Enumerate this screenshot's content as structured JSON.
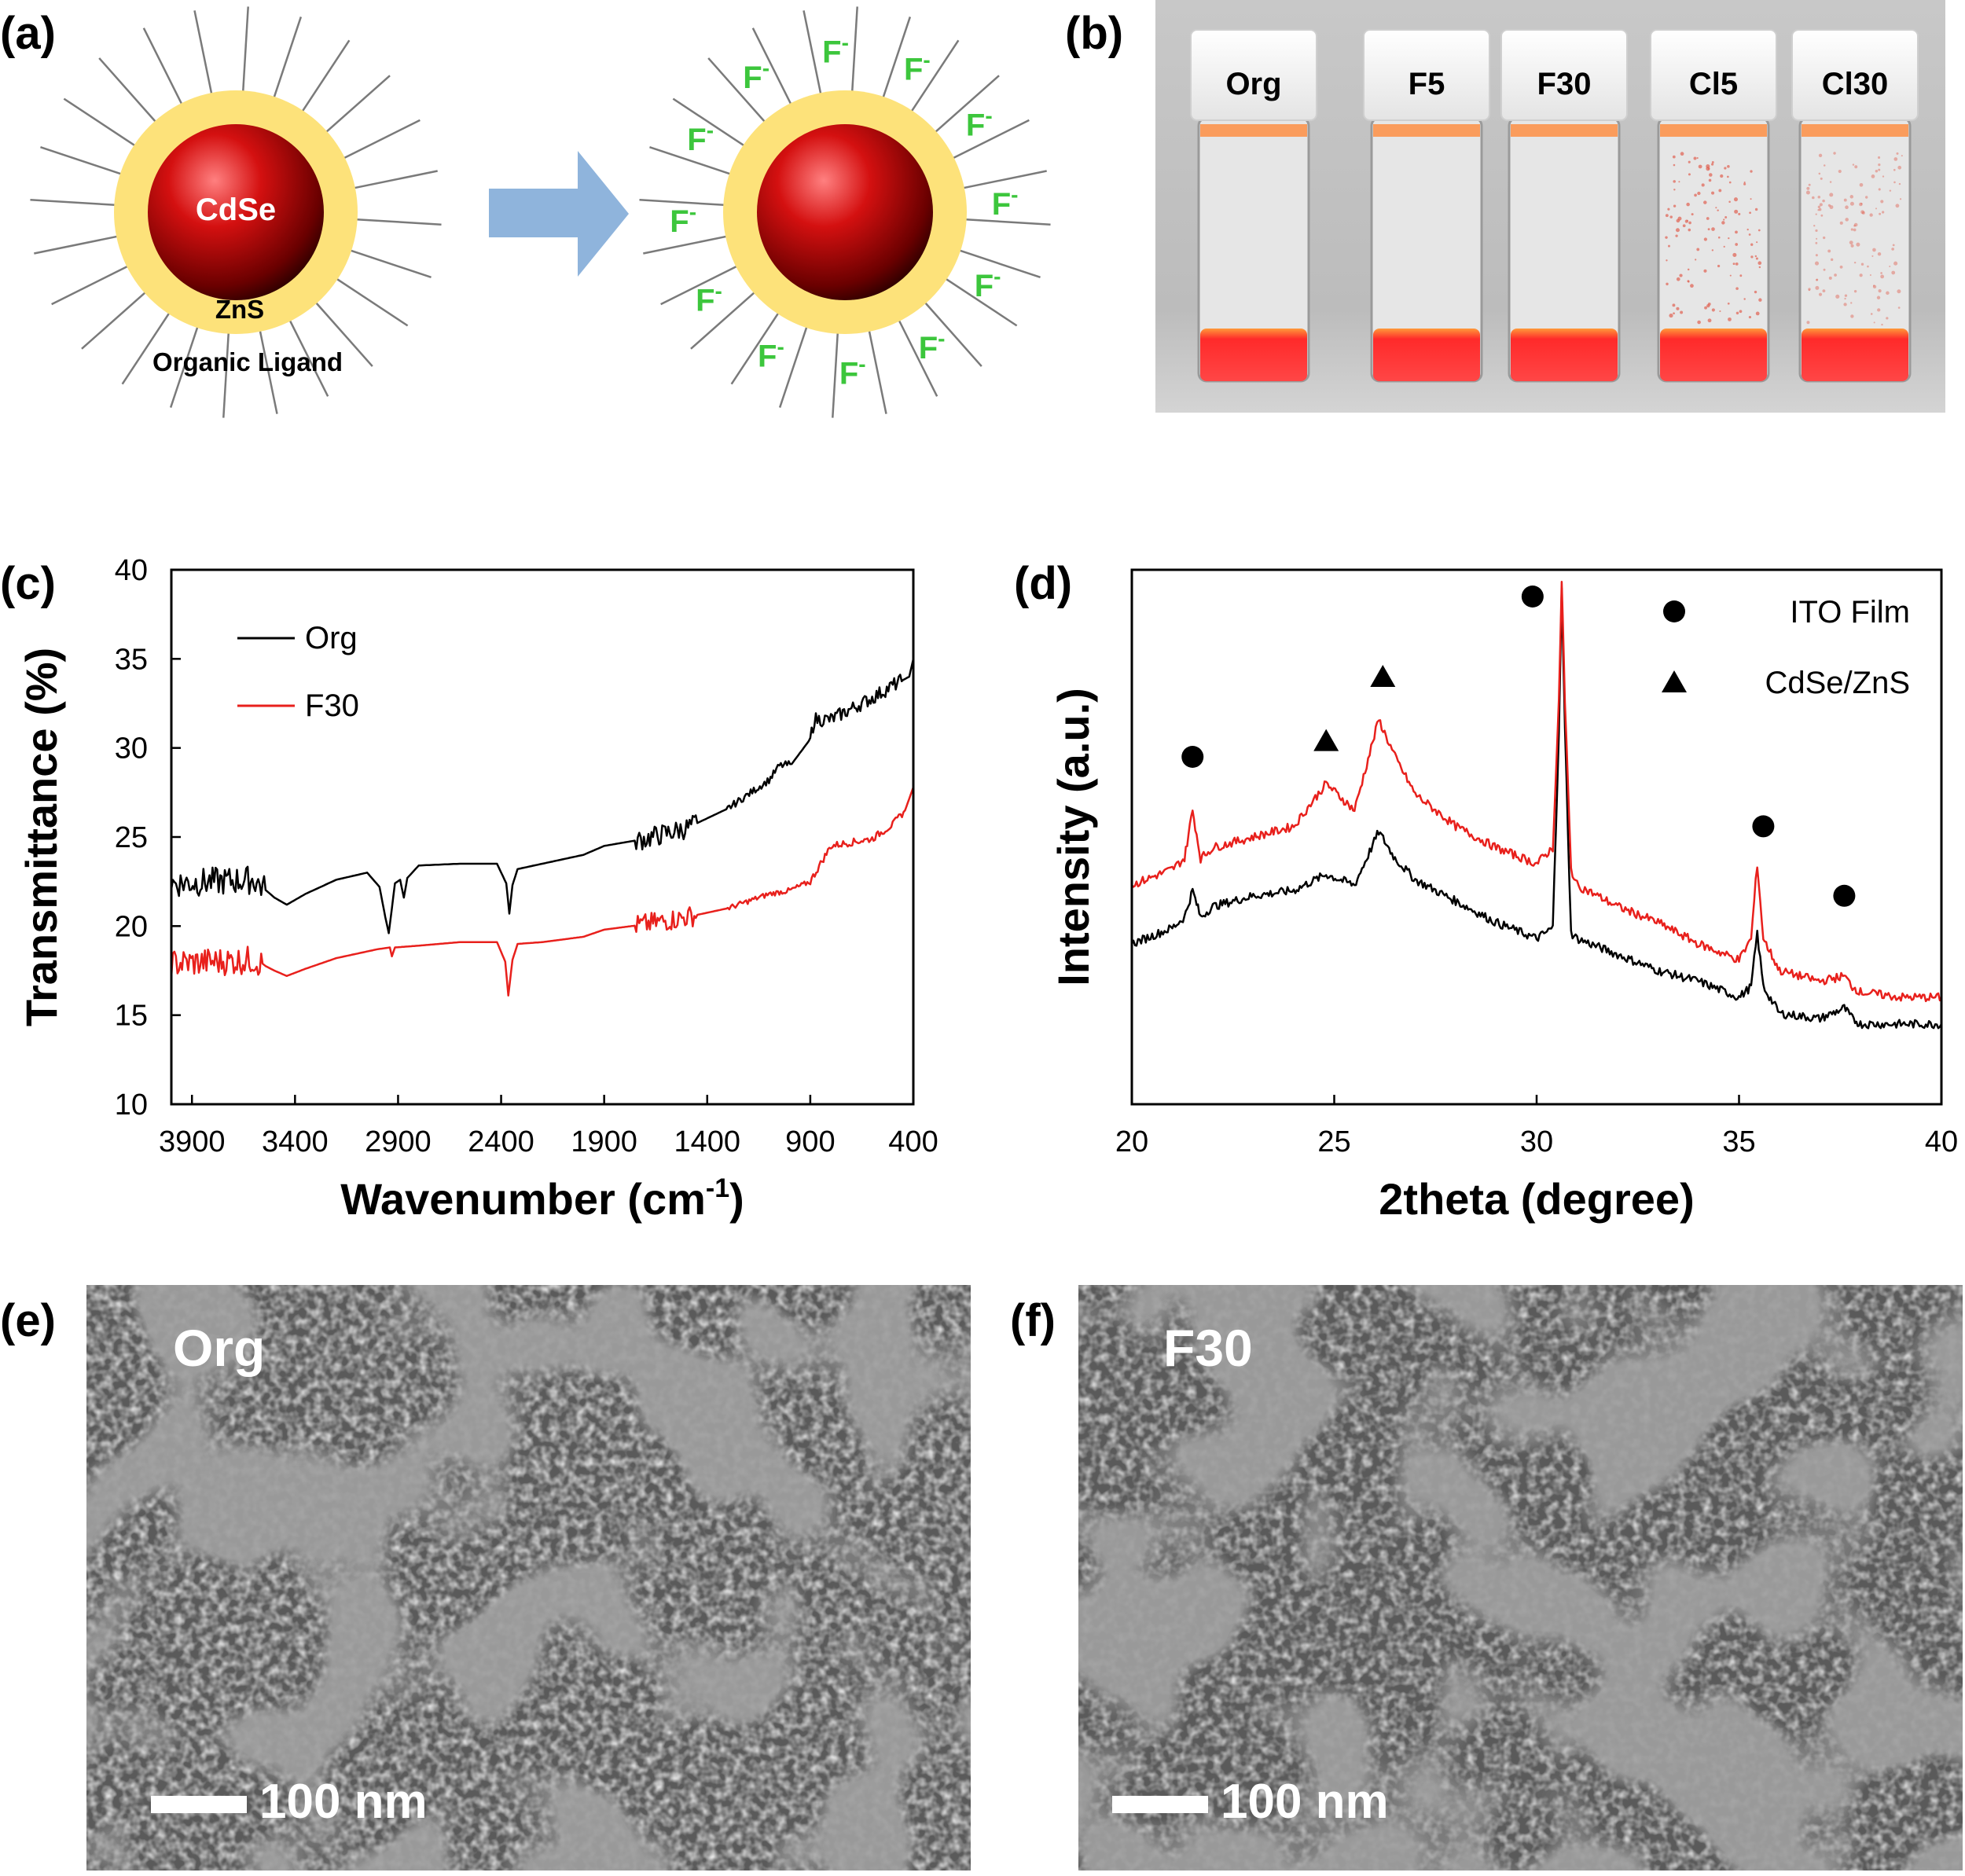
{
  "panels": {
    "a": {
      "label": "(a)",
      "core_label": "CdSe",
      "shell_label": "ZnS",
      "ligand_label": "Organic Ligand",
      "ion_label": "F",
      "ion_charge": "-",
      "ion_count": 12,
      "ion_color": "#3cc63c",
      "core_color": "#cc0000",
      "shell_color": "#fde27a",
      "arrow_color": "#8fb4dc"
    },
    "b": {
      "label": "(b)",
      "vials": [
        "Org",
        "F5",
        "F30",
        "Cl5",
        "Cl30"
      ],
      "liquid_color": "#ff2a2a"
    },
    "e": {
      "label": "(e)",
      "sample": "Org",
      "scalebar": "100 nm"
    },
    "f": {
      "label": "(f)",
      "sample": "F30",
      "scalebar": "100 nm"
    }
  },
  "chart_data": [
    {
      "panel": "(c)",
      "type": "line",
      "xlabel": "Wavenumber (cm",
      "xlabel_sup": "-1",
      "xlabel_end": ")",
      "ylabel": "Transmittance (%)",
      "xlim": [
        4000,
        400
      ],
      "x_reversed": true,
      "ylim": [
        10,
        40
      ],
      "xticks": [
        3900,
        3400,
        2900,
        2400,
        1900,
        1400,
        900,
        400
      ],
      "yticks": [
        10,
        15,
        20,
        25,
        30,
        35,
        40
      ],
      "grid": false,
      "legend_position": "top-left",
      "series": [
        {
          "name": "Org",
          "color": "#000000",
          "points": [
            [
              4000,
              22.4
            ],
            [
              3800,
              22.5
            ],
            [
              3600,
              22.6
            ],
            [
              3500,
              21.6
            ],
            [
              3440,
              21.2
            ],
            [
              3350,
              21.8
            ],
            [
              3200,
              22.6
            ],
            [
              3050,
              23.0
            ],
            [
              2990,
              22.2
            ],
            [
              2962,
              20.5
            ],
            [
              2945,
              19.6
            ],
            [
              2930,
              21.0
            ],
            [
              2915,
              22.4
            ],
            [
              2890,
              22.6
            ],
            [
              2872,
              21.6
            ],
            [
              2855,
              22.7
            ],
            [
              2800,
              23.4
            ],
            [
              2600,
              23.5
            ],
            [
              2420,
              23.5
            ],
            [
              2375,
              22.4
            ],
            [
              2360,
              20.7
            ],
            [
              2345,
              22.3
            ],
            [
              2320,
              23.2
            ],
            [
              2200,
              23.5
            ],
            [
              2000,
              24.0
            ],
            [
              1900,
              24.5
            ],
            [
              1700,
              24.9
            ],
            [
              1500,
              25.5
            ],
            [
              1300,
              26.6
            ],
            [
              1100,
              28.2
            ],
            [
              1050,
              29.0
            ],
            [
              990,
              29.1
            ],
            [
              900,
              30.5
            ],
            [
              880,
              31.6
            ],
            [
              800,
              31.6
            ],
            [
              700,
              32.2
            ],
            [
              600,
              32.8
            ],
            [
              500,
              33.5
            ],
            [
              420,
              34.0
            ],
            [
              400,
              35.0
            ]
          ],
          "noise_ranges": [
            [
              4000,
              3550,
              0.8
            ],
            [
              1750,
              1450,
              0.6
            ],
            [
              1300,
              1000,
              0.2
            ],
            [
              900,
              450,
              0.4
            ]
          ]
        },
        {
          "name": "F30",
          "color": "#e8201c",
          "points": [
            [
              4000,
              17.9
            ],
            [
              3800,
              18.0
            ],
            [
              3600,
              18.1
            ],
            [
              3500,
              17.5
            ],
            [
              3440,
              17.2
            ],
            [
              3350,
              17.6
            ],
            [
              3200,
              18.2
            ],
            [
              3000,
              18.7
            ],
            [
              2940,
              18.8
            ],
            [
              2930,
              18.3
            ],
            [
              2915,
              18.8
            ],
            [
              2800,
              18.9
            ],
            [
              2600,
              19.1
            ],
            [
              2420,
              19.1
            ],
            [
              2380,
              18.0
            ],
            [
              2365,
              16.1
            ],
            [
              2345,
              18.1
            ],
            [
              2320,
              19.0
            ],
            [
              2200,
              19.1
            ],
            [
              2000,
              19.4
            ],
            [
              1900,
              19.8
            ],
            [
              1700,
              20.1
            ],
            [
              1500,
              20.5
            ],
            [
              1300,
              21.0
            ],
            [
              1100,
              21.8
            ],
            [
              1000,
              22.0
            ],
            [
              900,
              22.5
            ],
            [
              800,
              24.5
            ],
            [
              600,
              24.9
            ],
            [
              500,
              25.7
            ],
            [
              440,
              26.5
            ],
            [
              400,
              27.8
            ]
          ],
          "noise_ranges": [
            [
              4000,
              3550,
              0.8
            ],
            [
              1750,
              1450,
              0.6
            ],
            [
              1300,
              900,
              0.15
            ],
            [
              900,
              450,
              0.2
            ]
          ]
        }
      ]
    },
    {
      "panel": "(d)",
      "type": "line",
      "xlabel": "2theta (degree)",
      "ylabel": "Intensity (a.u.)",
      "xlim": [
        20,
        40
      ],
      "ylim": [
        0,
        1
      ],
      "xticks": [
        20,
        25,
        30,
        35,
        40
      ],
      "yticks": [],
      "grid": false,
      "legend_position": "top-right",
      "legend": [
        {
          "marker": "circle",
          "label": "ITO Film"
        },
        {
          "marker": "triangle",
          "label": "CdSe/ZnS"
        }
      ],
      "series": [
        {
          "name": "",
          "color": "#000000",
          "points": [
            [
              20,
              0.3
            ],
            [
              21,
              0.33
            ],
            [
              21.3,
              0.35
            ],
            [
              21.5,
              0.4
            ],
            [
              21.7,
              0.35
            ],
            [
              22,
              0.37
            ],
            [
              23,
              0.39
            ],
            [
              24,
              0.4
            ],
            [
              24.8,
              0.43
            ],
            [
              25.5,
              0.41
            ],
            [
              26.1,
              0.51
            ],
            [
              26.5,
              0.46
            ],
            [
              27,
              0.42
            ],
            [
              28,
              0.38
            ],
            [
              29,
              0.34
            ],
            [
              30,
              0.31
            ],
            [
              30.4,
              0.33
            ],
            [
              30.55,
              0.7
            ],
            [
              30.62,
              0.96
            ],
            [
              30.7,
              0.7
            ],
            [
              30.85,
              0.32
            ],
            [
              31,
              0.31
            ],
            [
              32,
              0.28
            ],
            [
              33,
              0.25
            ],
            [
              34,
              0.23
            ],
            [
              35,
              0.2
            ],
            [
              35.3,
              0.22
            ],
            [
              35.45,
              0.32
            ],
            [
              35.6,
              0.22
            ],
            [
              36,
              0.17
            ],
            [
              37,
              0.16
            ],
            [
              37.6,
              0.18
            ],
            [
              37.8,
              0.16
            ],
            [
              38,
              0.15
            ],
            [
              39,
              0.15
            ],
            [
              40,
              0.15
            ]
          ],
          "noise": 0.008
        },
        {
          "name": "",
          "color": "#e8201c",
          "points": [
            [
              20,
              0.41
            ],
            [
              21,
              0.44
            ],
            [
              21.3,
              0.46
            ],
            [
              21.5,
              0.55
            ],
            [
              21.7,
              0.46
            ],
            [
              22,
              0.48
            ],
            [
              23,
              0.5
            ],
            [
              24,
              0.52
            ],
            [
              24.8,
              0.6
            ],
            [
              25.5,
              0.55
            ],
            [
              26.1,
              0.72
            ],
            [
              26.5,
              0.65
            ],
            [
              27,
              0.58
            ],
            [
              28,
              0.52
            ],
            [
              29,
              0.48
            ],
            [
              30,
              0.45
            ],
            [
              30.4,
              0.48
            ],
            [
              30.55,
              0.75
            ],
            [
              30.62,
              0.98
            ],
            [
              30.7,
              0.75
            ],
            [
              30.85,
              0.44
            ],
            [
              31,
              0.41
            ],
            [
              32,
              0.37
            ],
            [
              33,
              0.34
            ],
            [
              34,
              0.3
            ],
            [
              35,
              0.27
            ],
            [
              35.3,
              0.31
            ],
            [
              35.45,
              0.45
            ],
            [
              35.6,
              0.31
            ],
            [
              36,
              0.25
            ],
            [
              37,
              0.23
            ],
            [
              37.6,
              0.24
            ],
            [
              37.8,
              0.22
            ],
            [
              38,
              0.21
            ],
            [
              39,
              0.2
            ],
            [
              40,
              0.2
            ]
          ],
          "noise": 0.008
        }
      ],
      "markers": [
        {
          "type": "circle",
          "x": 21.5,
          "y": 0.65
        },
        {
          "type": "triangle",
          "x": 24.8,
          "y": 0.68
        },
        {
          "type": "triangle",
          "x": 26.2,
          "y": 0.8
        },
        {
          "type": "circle",
          "x": 29.9,
          "y": 0.95
        },
        {
          "type": "circle",
          "x": 35.6,
          "y": 0.52
        },
        {
          "type": "circle",
          "x": 37.6,
          "y": 0.39
        }
      ]
    }
  ]
}
